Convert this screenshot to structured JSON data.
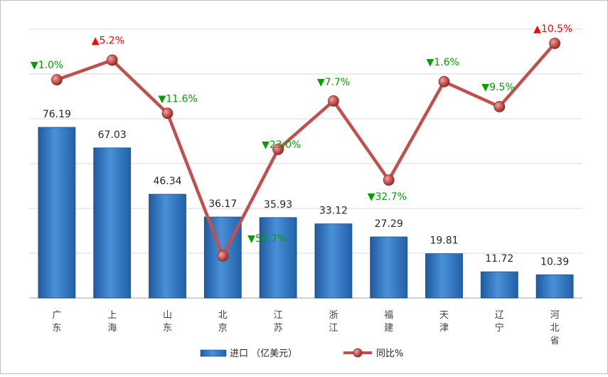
{
  "chart_data": {
    "type": "bar",
    "categories": [
      "广东",
      "上海",
      "山东",
      "北京",
      "江苏",
      "浙江",
      "福建",
      "天津",
      "辽宁",
      "河北省"
    ],
    "series": [
      {
        "name": "进口 （亿美元）",
        "type": "bar",
        "values": [
          76.19,
          67.03,
          46.34,
          36.17,
          35.93,
          33.12,
          27.29,
          19.81,
          11.72,
          10.39
        ],
        "labels": [
          "76.19",
          "67.03",
          "46.34",
          "36.17",
          "35.93",
          "33.12",
          "27.29",
          "19.81",
          "11.72",
          "10.39"
        ],
        "color": "#2E75B6"
      },
      {
        "name": "同比%",
        "type": "line",
        "values": [
          -1.0,
          5.2,
          -11.6,
          -56.7,
          -23.0,
          -7.7,
          -32.7,
          -1.6,
          -9.5,
          10.5
        ],
        "labels": [
          "▼1.0%",
          "▲5.2%",
          "▼11.6%",
          "▼56.7%",
          "▼23.0%",
          "▼7.7%",
          "▼32.7%",
          "▼1.6%",
          "▼9.5%",
          "▲10.5%"
        ],
        "color": "#C0504D"
      }
    ],
    "label_colors": {
      "up": "#FF0000",
      "down": "#00A000"
    },
    "ylim": [
      0,
      120
    ],
    "y2lim": [
      -70,
      15
    ],
    "grid": true,
    "legend": "bottom",
    "title": "",
    "xlabel": "",
    "ylabel": ""
  }
}
